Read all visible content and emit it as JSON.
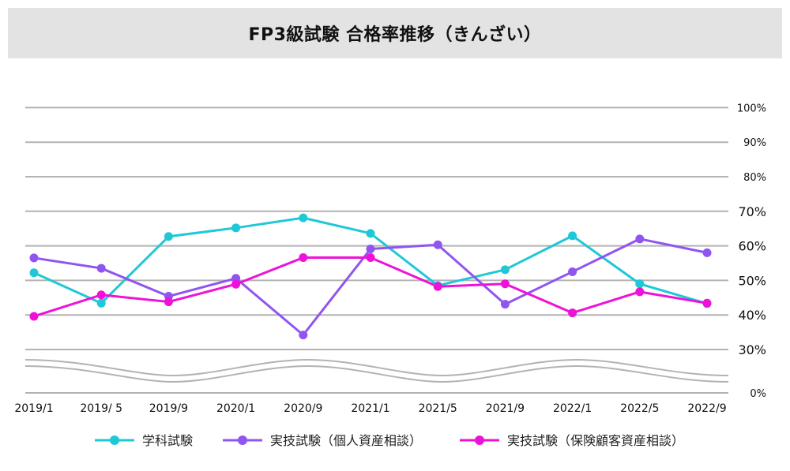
{
  "title": "FP3級試験 合格率推移（きんざい）",
  "chart_data": {
    "type": "line",
    "title": "FP3級試験 合格率推移（きんざい）",
    "xlabel": "",
    "ylabel": "",
    "categories": [
      "2019/1",
      "2019/ 5",
      "2019/9",
      "2020/1",
      "2020/9",
      "2021/1",
      "2021/5",
      "2021/9",
      "2022/1",
      "2022/5",
      "2022/9"
    ],
    "y_ticks": [
      {
        "value": 100,
        "label": "100%"
      },
      {
        "value": 90,
        "label": "90%"
      },
      {
        "value": 80,
        "label": "80%"
      },
      {
        "value": 70,
        "label": "70%"
      },
      {
        "value": 60,
        "label": "60%"
      },
      {
        "value": 50,
        "label": "50%"
      },
      {
        "value": 40,
        "label": "40%"
      },
      {
        "value": 30,
        "label": "30%"
      },
      {
        "value": 0,
        "label": "0%"
      }
    ],
    "ylim": [
      0,
      100
    ],
    "axis_break": "between 0% and 30%",
    "grid": true,
    "legend_position": "bottom",
    "series": [
      {
        "name": "学科試験",
        "color": "#1ec8d6",
        "values": [
          52.2,
          43.4,
          62.7,
          65.2,
          68.1,
          63.6,
          48.5,
          53.1,
          62.9,
          49.0,
          43.3
        ]
      },
      {
        "name": "実技試験（個人資産相談）",
        "color": "#9055f0",
        "values": [
          56.5,
          53.5,
          45.4,
          50.6,
          34.2,
          59.1,
          60.3,
          43.1,
          52.5,
          62.0,
          58.0
        ]
      },
      {
        "name": "実技試験（保険顧客資産相談）",
        "color": "#ee12d8",
        "values": [
          39.6,
          45.8,
          43.8,
          48.9,
          56.6,
          56.6,
          48.2,
          49.0,
          40.6,
          46.7,
          43.4
        ]
      }
    ]
  }
}
